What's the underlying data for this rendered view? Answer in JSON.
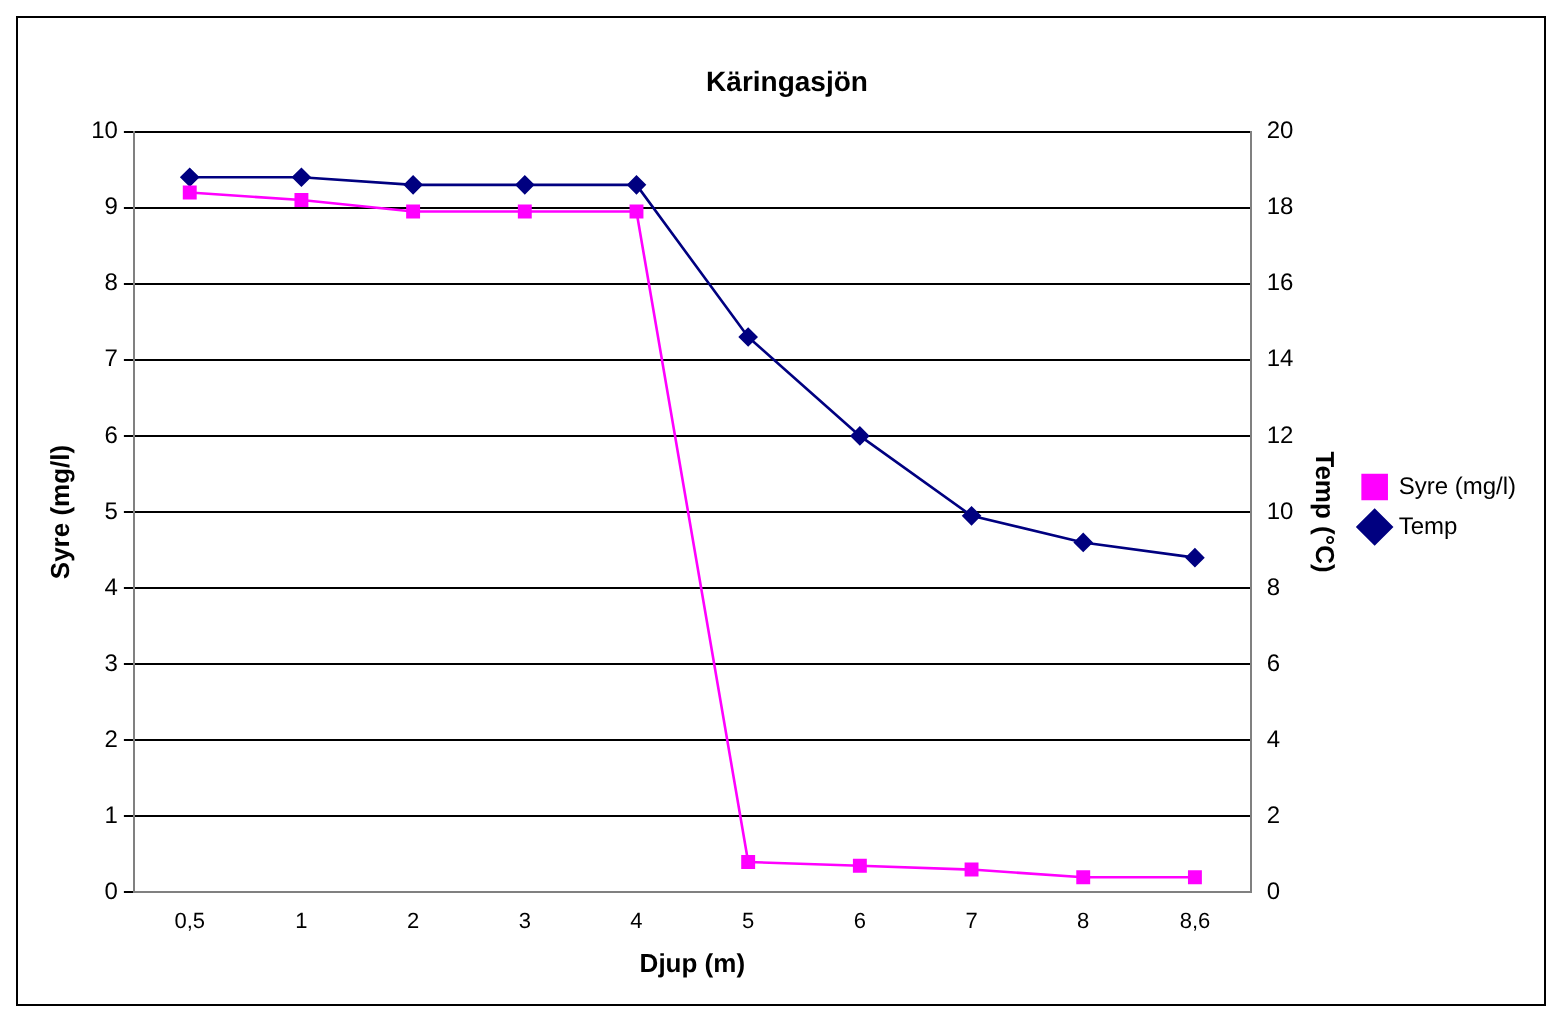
{
  "chart_data": {
    "type": "line",
    "title": "Käringasjön",
    "xlabel": "Djup (m)",
    "ylabel": "Syre (mg/l)",
    "y2label": "Temp (°C)",
    "categories": [
      "0,5",
      "1",
      "2",
      "3",
      "4",
      "5",
      "6",
      "7",
      "8",
      "8,6"
    ],
    "series": [
      {
        "name": "Syre (mg/l)",
        "color": "#ff00ff",
        "marker": "square",
        "values": [
          9.2,
          9.1,
          8.95,
          8.95,
          8.95,
          0.4,
          0.35,
          0.3,
          0.2,
          0.2
        ]
      },
      {
        "name": "Temp",
        "color": "#000080",
        "marker": "diamond",
        "axis": "y2",
        "values": [
          18.8,
          18.8,
          18.6,
          18.6,
          18.6,
          14.6,
          12.0,
          9.9,
          9.2,
          8.8
        ]
      }
    ],
    "ylim": [
      0,
      10
    ],
    "yticks": [
      0,
      1,
      2,
      3,
      4,
      5,
      6,
      7,
      8,
      9,
      10
    ],
    "y2lim": [
      0,
      20
    ],
    "y2ticks": [
      0,
      2,
      4,
      6,
      8,
      10,
      12,
      14,
      16,
      18,
      20
    ],
    "grid": "y",
    "legend": "right"
  }
}
